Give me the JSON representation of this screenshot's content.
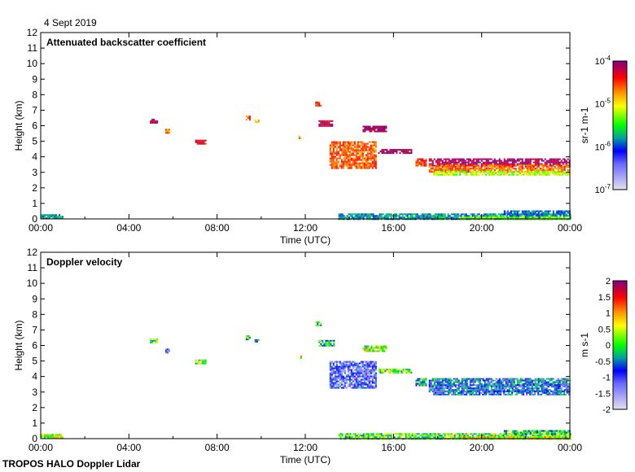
{
  "date": "4 Sept 2019",
  "footer": "TROPOS HALO Doppler Lidar",
  "chart_data": [
    {
      "type": "heatmap",
      "title": "Attenuated backscatter coefficient",
      "xlabel": "Time (UTC)",
      "ylabel": "Height (km)",
      "xticks": [
        "00:00",
        "04:00",
        "08:00",
        "12:00",
        "16:00",
        "20:00",
        "00:00"
      ],
      "xlim_hours": [
        0,
        24
      ],
      "ylim": [
        0,
        12
      ],
      "yticks": [
        "0",
        "1",
        "2",
        "3",
        "4",
        "5",
        "6",
        "7",
        "8",
        "9",
        "10",
        "11",
        "12"
      ],
      "colorbar": {
        "label": "sr-1 m-1",
        "scale": "log",
        "range_exponent": [
          -7,
          -4
        ],
        "ticks": [
          "10-7",
          "10-6",
          "10-5",
          "10-4"
        ]
      },
      "features": [
        {
          "t": [
            4.95,
            5.3
          ],
          "h": [
            6.15,
            6.45
          ],
          "v": -4.2
        },
        {
          "t": [
            5.65,
            5.8
          ],
          "h": [
            5.55,
            5.8
          ],
          "v": -4.7
        },
        {
          "t": [
            7.0,
            7.45
          ],
          "h": [
            4.85,
            5.1
          ],
          "v": -4.3
        },
        {
          "t": [
            9.3,
            9.5
          ],
          "h": [
            6.4,
            6.65
          ],
          "v": -4.6
        },
        {
          "t": [
            9.7,
            9.85
          ],
          "h": [
            6.2,
            6.4
          ],
          "v": -4.7
        },
        {
          "t": [
            11.7,
            11.8
          ],
          "h": [
            5.2,
            5.35
          ],
          "v": -4.7
        },
        {
          "t": [
            12.45,
            12.7
          ],
          "h": [
            7.25,
            7.55
          ],
          "v": -4.4
        },
        {
          "t": [
            12.6,
            13.3
          ],
          "h": [
            6.0,
            6.35
          ],
          "v": -4.2
        },
        {
          "t": [
            13.1,
            15.2
          ],
          "h": [
            3.3,
            5.0
          ],
          "v": -4.6
        },
        {
          "t": [
            14.6,
            15.7
          ],
          "h": [
            5.6,
            6.0
          ],
          "v": -4.1
        },
        {
          "t": [
            15.3,
            16.8
          ],
          "h": [
            4.2,
            4.5
          ],
          "v": -4.1
        },
        {
          "t": [
            17.0,
            17.5
          ],
          "h": [
            3.4,
            3.9
          ],
          "v": -4.5
        },
        {
          "t": [
            17.6,
            24.0
          ],
          "h": [
            3.45,
            3.9
          ],
          "v": -4.1
        },
        {
          "t": [
            17.6,
            24.0
          ],
          "h": [
            3.0,
            3.5
          ],
          "v": -4.6
        },
        {
          "t": [
            17.8,
            24.0
          ],
          "h": [
            2.8,
            3.1
          ],
          "v": -5.2
        },
        {
          "t": [
            0.0,
            1.0
          ],
          "h": [
            0.0,
            0.3
          ],
          "v": -5.8
        },
        {
          "t": [
            13.5,
            24.0
          ],
          "h": [
            0.0,
            0.35
          ],
          "v": -5.8
        },
        {
          "t": [
            19.0,
            24.0
          ],
          "h": [
            0.0,
            0.15
          ],
          "v": -5.3
        },
        {
          "t": [
            21.0,
            24.0
          ],
          "h": [
            0.25,
            0.55
          ],
          "v": -5.9
        }
      ]
    },
    {
      "type": "heatmap",
      "title": "Doppler velocity",
      "xlabel": "Time (UTC)",
      "ylabel": "Height (km)",
      "xticks": [
        "00:00",
        "04:00",
        "08:00",
        "12:00",
        "16:00",
        "20:00",
        "00:00"
      ],
      "xlim_hours": [
        0,
        24
      ],
      "ylim": [
        0,
        12
      ],
      "yticks": [
        "0",
        "1",
        "2",
        "3",
        "4",
        "5",
        "6",
        "7",
        "8",
        "9",
        "10",
        "11",
        "12"
      ],
      "colorbar": {
        "label": "m s-1",
        "range": [
          -2,
          2
        ],
        "ticks": [
          "-2",
          "-1.5",
          "-1",
          "-0.5",
          "0",
          "0.5",
          "1",
          "1.5",
          "2"
        ]
      },
      "features": [
        {
          "t": [
            4.95,
            5.3
          ],
          "h": [
            6.15,
            6.45
          ],
          "v": 0.1
        },
        {
          "t": [
            5.65,
            5.8
          ],
          "h": [
            5.55,
            5.8
          ],
          "v": -1.0
        },
        {
          "t": [
            7.0,
            7.45
          ],
          "h": [
            4.85,
            5.1
          ],
          "v": 0.2
        },
        {
          "t": [
            9.3,
            9.5
          ],
          "h": [
            6.4,
            6.65
          ],
          "v": -0.1
        },
        {
          "t": [
            9.7,
            9.85
          ],
          "h": [
            6.2,
            6.4
          ],
          "v": -0.6
        },
        {
          "t": [
            11.7,
            11.8
          ],
          "h": [
            5.2,
            5.35
          ],
          "v": 0.6
        },
        {
          "t": [
            12.45,
            12.7
          ],
          "h": [
            7.25,
            7.55
          ],
          "v": -0.1
        },
        {
          "t": [
            12.6,
            13.3
          ],
          "h": [
            6.0,
            6.35
          ],
          "v": -0.3
        },
        {
          "t": [
            13.1,
            15.2
          ],
          "h": [
            3.3,
            5.0
          ],
          "v": -1.1
        },
        {
          "t": [
            14.6,
            15.7
          ],
          "h": [
            5.6,
            6.0
          ],
          "v": 0.3
        },
        {
          "t": [
            15.3,
            16.8
          ],
          "h": [
            4.2,
            4.5
          ],
          "v": 0.2
        },
        {
          "t": [
            17.0,
            17.5
          ],
          "h": [
            3.4,
            3.9
          ],
          "v": -0.3
        },
        {
          "t": [
            17.6,
            24.0
          ],
          "h": [
            3.45,
            3.9
          ],
          "v": -0.6
        },
        {
          "t": [
            17.6,
            24.0
          ],
          "h": [
            3.0,
            3.5
          ],
          "v": -0.8
        },
        {
          "t": [
            17.8,
            24.0
          ],
          "h": [
            2.8,
            3.1
          ],
          "v": -0.7
        },
        {
          "t": [
            0.0,
            1.0
          ],
          "h": [
            0.0,
            0.3
          ],
          "v": 0.4
        },
        {
          "t": [
            13.5,
            24.0
          ],
          "h": [
            0.0,
            0.35
          ],
          "v": 0.1
        },
        {
          "t": [
            19.0,
            24.0
          ],
          "h": [
            0.0,
            0.15
          ],
          "v": 0.6
        },
        {
          "t": [
            21.0,
            24.0
          ],
          "h": [
            0.25,
            0.55
          ],
          "v": -0.1
        }
      ]
    }
  ],
  "colors": {
    "purple": "#800080",
    "red": "#ff0000",
    "orange": "#ff9900",
    "yellow": "#ffff00",
    "green": "#00ff00",
    "teal": "#00a090",
    "blue": "#0000ff",
    "lavender": "#ddd8ee"
  }
}
